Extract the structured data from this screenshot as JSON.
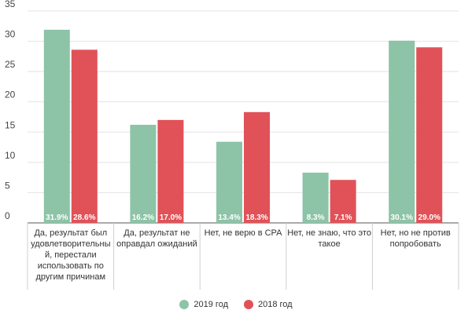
{
  "chart_data": {
    "type": "bar",
    "categories": [
      "Да, результат был удовлетворительный, перестали использовать по другим причинам",
      "Да, результат не оправдал ожиданий",
      "Нет, не верю в CPA",
      "Нет, не знаю, что это такое",
      "Нет, но не против попробовать"
    ],
    "series": [
      {
        "name": "2019 год",
        "color": "#8dc3a7",
        "values": [
          31.9,
          16.2,
          13.4,
          8.3,
          30.1
        ],
        "labels": [
          "31.9%",
          "16.2%",
          "13.4%",
          "8.3%",
          "30.1%"
        ]
      },
      {
        "name": "2018 год",
        "color": "#e05258",
        "values": [
          28.6,
          17.0,
          18.3,
          7.1,
          29.0
        ],
        "labels": [
          "28.6%",
          "17.0%",
          "18.3%",
          "7.1%",
          "29.0%"
        ]
      }
    ],
    "yticks": [
      "0",
      "5",
      "10",
      "15",
      "20",
      "25",
      "30",
      "35"
    ],
    "ylim": [
      0,
      35
    ],
    "grid": true,
    "legend_position": "bottom"
  },
  "category_display": [
    [
      "Да, результат был",
      "удовлетворительны",
      "й, перестали",
      "использовать по",
      "другим причинам"
    ],
    [
      "Да, результат не",
      "оправдал ожиданий"
    ],
    [
      "Нет, не верю в CPA"
    ],
    [
      "Нет, не знаю, что это",
      "такое"
    ],
    [
      "Нет, но не против",
      "попробовать"
    ]
  ],
  "legend": [
    {
      "label": "2019 год",
      "color": "#8dc3a7"
    },
    {
      "label": "2018 год",
      "color": "#e05258"
    }
  ]
}
